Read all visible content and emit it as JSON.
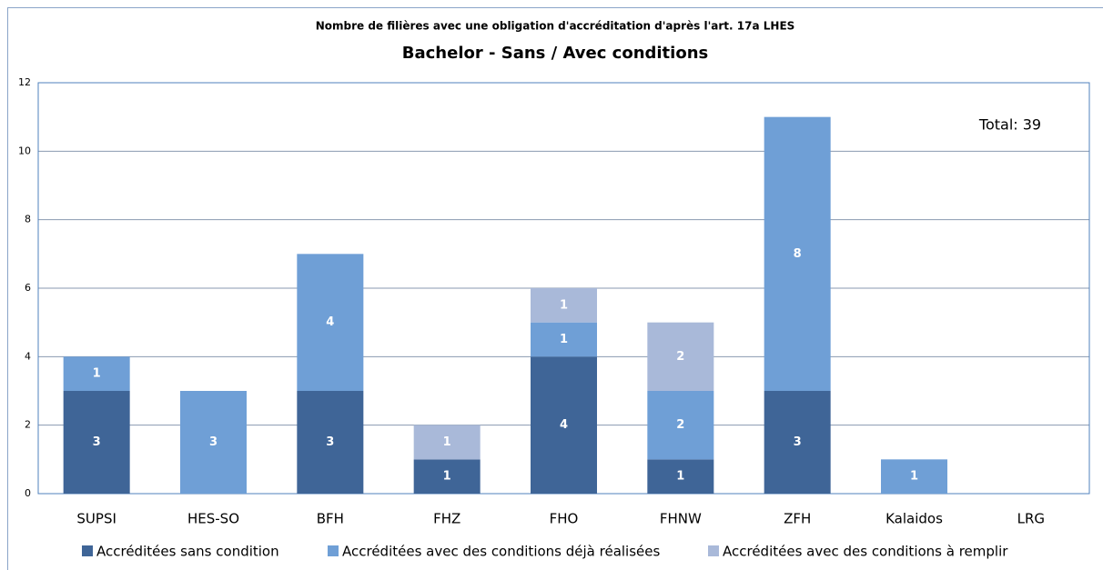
{
  "chart_data": {
    "type": "bar",
    "stacked": true,
    "title": "Nombre de filières avec une obligation  d'accréditation d'après l'art. 17a LHES",
    "subtitle": "Bachelor - Sans / Avec conditions",
    "annotation": "Total: 39",
    "categories": [
      "SUPSI",
      "HES-SO",
      "BFH",
      "FHZ",
      "FHO",
      "FHNW",
      "ZFH",
      "Kalaidos",
      "LRG"
    ],
    "series": [
      {
        "name": "Accréditées sans condition",
        "color": "#3f6597",
        "values": [
          3,
          null,
          3,
          1,
          4,
          1,
          3,
          null,
          null
        ]
      },
      {
        "name": "Accréditées avec des conditions déjà réalisées",
        "color": "#6f9fd6",
        "values": [
          1,
          3,
          4,
          null,
          1,
          2,
          8,
          1,
          null
        ]
      },
      {
        "name": "Accréditées avec des conditions à remplir",
        "color": "#a9b9d9",
        "values": [
          null,
          null,
          null,
          1,
          1,
          2,
          null,
          null,
          null
        ]
      }
    ],
    "ylim": [
      0,
      12
    ],
    "yticks": [
      0,
      2,
      4,
      6,
      8,
      10,
      12
    ],
    "grid": true,
    "legend": "bottom"
  }
}
